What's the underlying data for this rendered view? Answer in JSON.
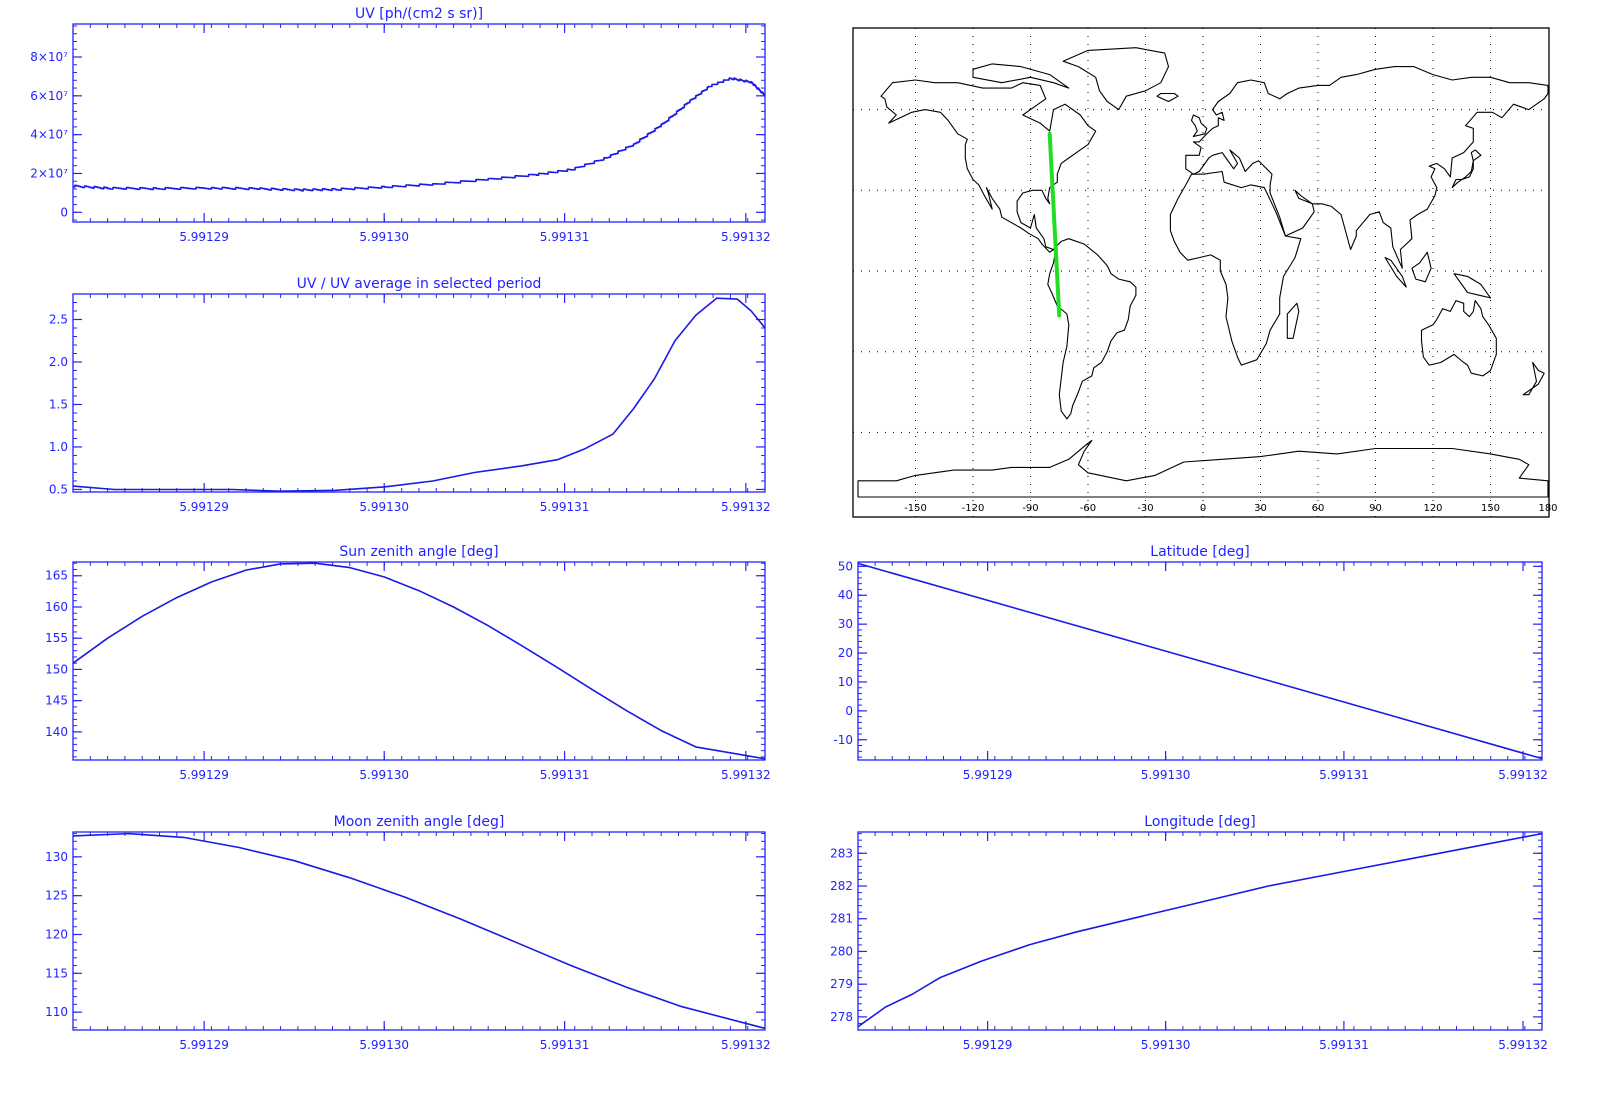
{
  "colors": {
    "axis": "#2323ff",
    "line": "#1a1ae6",
    "track": "#22dd22",
    "coast": "#000000",
    "background": "#ffffff"
  },
  "chart_data": [
    {
      "id": "uv",
      "type": "line",
      "title": "UV [ph/(cm2 s sr)]",
      "x_ticks": [
        "5.99129",
        "5.99130",
        "5.99131",
        "5.99132"
      ],
      "y_ticks": [
        "0",
        "2×10⁷",
        "4×10⁷",
        "6×10⁷",
        "8×10⁷"
      ],
      "ylim": [
        -5000000,
        97000000
      ],
      "xlim": [
        0,
        1
      ],
      "style": "step",
      "series": [
        {
          "points": [
            [
              0,
              13500000.0
            ],
            [
              0.05,
              12400000.0
            ],
            [
              0.12,
              12200000.0
            ],
            [
              0.2,
              12500000.0
            ],
            [
              0.27,
              12100000.0
            ],
            [
              0.33,
              11500000.0
            ],
            [
              0.38,
              11800000.0
            ],
            [
              0.45,
              13000000.0
            ],
            [
              0.52,
              14500000.0
            ],
            [
              0.6,
              17000000.0
            ],
            [
              0.67,
              19500000.0
            ],
            [
              0.72,
              22000000.0
            ],
            [
              0.77,
              28000000.0
            ],
            [
              0.81,
              35000000.0
            ],
            [
              0.85,
              45000000.0
            ],
            [
              0.89,
              57000000.0
            ],
            [
              0.92,
              65000000.0
            ],
            [
              0.95,
              69000000.0
            ],
            [
              0.98,
              67000000.0
            ],
            [
              1.0,
              60000000.0
            ]
          ]
        }
      ]
    },
    {
      "id": "uv_ratio",
      "type": "line",
      "title": "UV / UV average in selected period",
      "x_ticks": [
        "5.99129",
        "5.99130",
        "5.99131",
        "5.99132"
      ],
      "y_ticks": [
        "0.5",
        "1.0",
        "1.5",
        "2.0",
        "2.5"
      ],
      "ylim": [
        0.47,
        2.8
      ],
      "xlim": [
        0,
        1
      ],
      "series": [
        {
          "points": [
            [
              0,
              0.54
            ],
            [
              0.06,
              0.5
            ],
            [
              0.15,
              0.5
            ],
            [
              0.23,
              0.5
            ],
            [
              0.3,
              0.48
            ],
            [
              0.38,
              0.49
            ],
            [
              0.45,
              0.53
            ],
            [
              0.52,
              0.6
            ],
            [
              0.58,
              0.7
            ],
            [
              0.65,
              0.78
            ],
            [
              0.7,
              0.85
            ],
            [
              0.74,
              0.98
            ],
            [
              0.78,
              1.15
            ],
            [
              0.81,
              1.45
            ],
            [
              0.84,
              1.8
            ],
            [
              0.87,
              2.25
            ],
            [
              0.9,
              2.55
            ],
            [
              0.93,
              2.75
            ],
            [
              0.96,
              2.74
            ],
            [
              0.98,
              2.6
            ],
            [
              1.0,
              2.4
            ]
          ]
        }
      ]
    },
    {
      "id": "sun_zenith",
      "type": "line",
      "title": "Sun zenith angle [deg]",
      "x_ticks": [
        "5.99129",
        "5.99130",
        "5.99131",
        "5.99132"
      ],
      "y_ticks": [
        "140",
        "145",
        "150",
        "155",
        "160",
        "165"
      ],
      "ylim": [
        135.5,
        167.2
      ],
      "xlim": [
        0,
        1
      ],
      "series": [
        {
          "points": [
            [
              0,
              151.0
            ],
            [
              0.05,
              155.0
            ],
            [
              0.1,
              158.5
            ],
            [
              0.15,
              161.5
            ],
            [
              0.2,
              164.0
            ],
            [
              0.25,
              165.9
            ],
            [
              0.3,
              166.9
            ],
            [
              0.35,
              167.0
            ],
            [
              0.4,
              166.3
            ],
            [
              0.45,
              164.8
            ],
            [
              0.5,
              162.6
            ],
            [
              0.55,
              160.0
            ],
            [
              0.6,
              157.0
            ],
            [
              0.65,
              153.7
            ],
            [
              0.7,
              150.3
            ],
            [
              0.75,
              146.8
            ],
            [
              0.8,
              143.4
            ],
            [
              0.85,
              140.2
            ],
            [
              0.9,
              137.6
            ],
            [
              1.0,
              135.7
            ]
          ]
        }
      ]
    },
    {
      "id": "moon_zenith",
      "type": "line",
      "title": "Moon zenith angle [deg]",
      "x_ticks": [
        "5.99129",
        "5.99130",
        "5.99131",
        "5.99132"
      ],
      "y_ticks": [
        "110",
        "115",
        "120",
        "125",
        "130"
      ],
      "ylim": [
        107.7,
        133.2
      ],
      "xlim": [
        0,
        1
      ],
      "series": [
        {
          "points": [
            [
              0,
              132.7
            ],
            [
              0.08,
              133.0
            ],
            [
              0.16,
              132.5
            ],
            [
              0.24,
              131.2
            ],
            [
              0.32,
              129.5
            ],
            [
              0.4,
              127.3
            ],
            [
              0.48,
              124.8
            ],
            [
              0.56,
              122.0
            ],
            [
              0.64,
              119.0
            ],
            [
              0.72,
              116.0
            ],
            [
              0.8,
              113.2
            ],
            [
              0.88,
              110.7
            ],
            [
              1.0,
              107.9
            ]
          ]
        }
      ]
    },
    {
      "id": "latitude",
      "type": "line",
      "title": "Latitude [deg]",
      "x_ticks": [
        "5.99129",
        "5.99130",
        "5.99131",
        "5.99132"
      ],
      "y_ticks": [
        "-10",
        "0",
        "10",
        "20",
        "30",
        "40",
        "50"
      ],
      "ylim": [
        -17,
        51.5
      ],
      "xlim": [
        0,
        1
      ],
      "series": [
        {
          "points": [
            [
              0,
              51.0
            ],
            [
              0.5,
              17.3
            ],
            [
              1.0,
              -16.5
            ]
          ]
        }
      ]
    },
    {
      "id": "longitude",
      "type": "line",
      "title": "Longitude [deg]",
      "x_ticks": [
        "5.99129",
        "5.99130",
        "5.99131",
        "5.99132"
      ],
      "y_ticks": [
        "278",
        "279",
        "280",
        "281",
        "282",
        "283"
      ],
      "ylim": [
        277.6,
        283.65
      ],
      "xlim": [
        0,
        1
      ],
      "series": [
        {
          "points": [
            [
              0,
              277.7
            ],
            [
              0.04,
              278.3
            ],
            [
              0.08,
              278.7
            ],
            [
              0.12,
              279.2
            ],
            [
              0.18,
              279.7
            ],
            [
              0.25,
              280.2
            ],
            [
              0.32,
              280.6
            ],
            [
              0.4,
              281.0
            ],
            [
              0.5,
              281.5
            ],
            [
              0.6,
              282.0
            ],
            [
              0.7,
              282.4
            ],
            [
              0.8,
              282.8
            ],
            [
              0.9,
              283.2
            ],
            [
              1.0,
              283.6
            ]
          ]
        }
      ]
    }
  ],
  "map": {
    "x_ticks": [
      "-150",
      "-120",
      "-90",
      "-60",
      "-30",
      "0",
      "30",
      "60",
      "90",
      "120",
      "150",
      "180"
    ],
    "track": {
      "start": [
        -80,
        51
      ],
      "end": [
        -75,
        -16.5
      ]
    }
  }
}
